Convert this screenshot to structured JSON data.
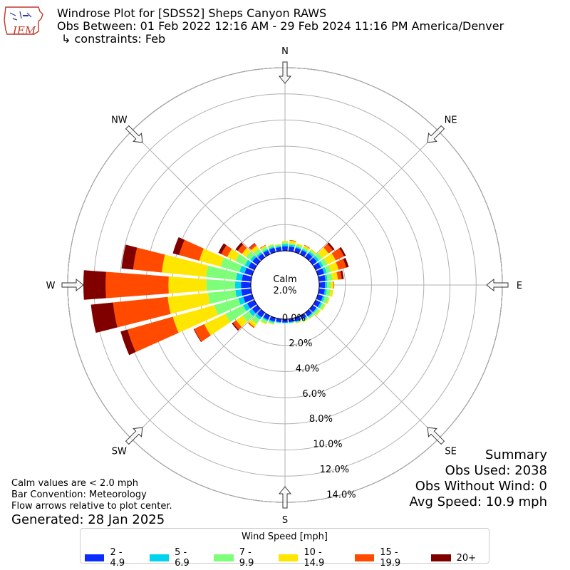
{
  "header": {
    "title": "Windrose Plot for [SDSS2] Sheps Canyon RAWS",
    "obs_between": "Obs Between: 01 Feb 2022 12:16 AM - 29 Feb 2024 11:16 PM America/Denver",
    "constraints": "↳ constraints: Feb",
    "logo_text": "IEM"
  },
  "summary": {
    "title": "Summary",
    "obs_used": "Obs Used: 2038",
    "obs_without_wind": "Obs Without Wind: 0",
    "avg_speed": "Avg Speed: 10.9 mph"
  },
  "notes": {
    "calm": "Calm values are < 2.0 mph",
    "bar_convention": "Bar Convention: Meteorology",
    "flow_arrows": "Flow arrows relative to plot center.",
    "generated": "Generated: 28 Jan 2025"
  },
  "legend": {
    "title": "Wind Speed [mph]",
    "items": [
      {
        "label": "2 - 4.9",
        "color": "#0a2cff"
      },
      {
        "label": "5 - 6.9",
        "color": "#00d3ee"
      },
      {
        "label": "7 - 9.9",
        "color": "#7dff7a"
      },
      {
        "label": "10 - 14.9",
        "color": "#ffe600"
      },
      {
        "label": "15 - 19.9",
        "color": "#ff4a00"
      },
      {
        "label": "20+",
        "color": "#800000"
      }
    ]
  },
  "chart_data": {
    "type": "windrose",
    "calm_label": "Calm",
    "calm_value": "2.0%",
    "radial_ticks": [
      "0.0%",
      "2.0%",
      "4.0%",
      "6.0%",
      "8.0%",
      "10.0%",
      "12.0%",
      "14.0%"
    ],
    "radial_max": 14,
    "directions": [
      "N",
      "NE",
      "E",
      "SE",
      "S",
      "SW",
      "W",
      "NW"
    ],
    "speed_bins": [
      "2 - 4.9",
      "5 - 6.9",
      "7 - 9.9",
      "10 - 14.9",
      "15 - 19.9",
      "20+"
    ],
    "sectors": [
      {
        "dir": 0,
        "values": [
          0.35,
          0.15,
          0.15,
          0.1,
          0.0,
          0.0
        ]
      },
      {
        "dir": 10,
        "values": [
          0.35,
          0.15,
          0.1,
          0.2,
          0.05,
          0.0
        ]
      },
      {
        "dir": 20,
        "values": [
          0.35,
          0.1,
          0.15,
          0.1,
          0.0,
          0.0
        ]
      },
      {
        "dir": 30,
        "values": [
          0.35,
          0.1,
          0.15,
          0.15,
          0.05,
          0.0
        ]
      },
      {
        "dir": 40,
        "values": [
          0.4,
          0.15,
          0.15,
          0.1,
          0.0,
          0.0
        ]
      },
      {
        "dir": 50,
        "values": [
          0.4,
          0.2,
          0.3,
          0.6,
          0.4,
          0.15
        ]
      },
      {
        "dir": 60,
        "values": [
          0.45,
          0.2,
          0.35,
          0.7,
          0.7,
          0.15
        ]
      },
      {
        "dir": 70,
        "values": [
          0.5,
          0.2,
          0.35,
          0.6,
          0.6,
          0.2
        ]
      },
      {
        "dir": 80,
        "values": [
          0.5,
          0.15,
          0.4,
          0.4,
          0.3,
          0.15
        ]
      },
      {
        "dir": 90,
        "values": [
          0.45,
          0.15,
          0.3,
          0.2,
          0.05,
          0.0
        ]
      },
      {
        "dir": 100,
        "values": [
          0.45,
          0.15,
          0.3,
          0.2,
          0.0,
          0.0
        ]
      },
      {
        "dir": 110,
        "values": [
          0.4,
          0.15,
          0.3,
          0.1,
          0.0,
          0.0
        ]
      },
      {
        "dir": 120,
        "values": [
          0.4,
          0.15,
          0.2,
          0.1,
          0.0,
          0.0
        ]
      },
      {
        "dir": 130,
        "values": [
          0.35,
          0.1,
          0.2,
          0.1,
          0.0,
          0.0
        ]
      },
      {
        "dir": 140,
        "values": [
          0.35,
          0.1,
          0.1,
          0.05,
          0.0,
          0.0
        ]
      },
      {
        "dir": 150,
        "values": [
          0.3,
          0.1,
          0.1,
          0.05,
          0.0,
          0.0
        ]
      },
      {
        "dir": 160,
        "values": [
          0.3,
          0.05,
          0.05,
          0.05,
          0.0,
          0.0
        ]
      },
      {
        "dir": 170,
        "values": [
          0.25,
          0.05,
          0.05,
          0.0,
          0.0,
          0.0
        ]
      },
      {
        "dir": 180,
        "values": [
          0.25,
          0.05,
          0.0,
          0.0,
          0.0,
          0.0
        ]
      },
      {
        "dir": 190,
        "values": [
          0.25,
          0.05,
          0.05,
          0.0,
          0.0,
          0.0
        ]
      },
      {
        "dir": 200,
        "values": [
          0.3,
          0.1,
          0.1,
          0.05,
          0.0,
          0.0
        ]
      },
      {
        "dir": 210,
        "values": [
          0.35,
          0.1,
          0.2,
          0.1,
          0.0,
          0.0
        ]
      },
      {
        "dir": 220,
        "values": [
          0.45,
          0.2,
          0.4,
          0.3,
          0.1,
          0.0
        ]
      },
      {
        "dir": 230,
        "values": [
          0.5,
          0.3,
          0.6,
          0.6,
          0.3,
          0.1
        ]
      },
      {
        "dir": 240,
        "values": [
          0.6,
          0.35,
          1.5,
          1.8,
          0.85,
          0.05
        ]
      },
      {
        "dir": 250,
        "values": [
          0.7,
          0.4,
          1.9,
          3.3,
          3.6,
          0.55
        ]
      },
      {
        "dir": 260,
        "values": [
          0.75,
          0.45,
          2.1,
          3.1,
          4.2,
          1.7
        ]
      },
      {
        "dir": 270,
        "values": [
          0.75,
          0.45,
          2.2,
          2.9,
          4.8,
          1.7
        ]
      },
      {
        "dir": 280,
        "values": [
          0.7,
          0.45,
          2.3,
          3.4,
          2.2,
          0.9
        ]
      },
      {
        "dir": 290,
        "values": [
          0.6,
          0.4,
          1.5,
          1.7,
          1.6,
          0.5
        ]
      },
      {
        "dir": 300,
        "values": [
          0.5,
          0.3,
          0.8,
          0.7,
          0.5,
          0.25
        ]
      },
      {
        "dir": 310,
        "values": [
          0.45,
          0.2,
          0.4,
          0.4,
          0.4,
          0.2
        ]
      },
      {
        "dir": 320,
        "values": [
          0.35,
          0.15,
          0.3,
          0.3,
          0.2,
          0.05
        ]
      },
      {
        "dir": 330,
        "values": [
          0.35,
          0.1,
          0.2,
          0.1,
          0.05,
          0.0
        ]
      },
      {
        "dir": 340,
        "values": [
          0.35,
          0.1,
          0.15,
          0.05,
          0.0,
          0.0
        ]
      },
      {
        "dir": 350,
        "values": [
          0.3,
          0.1,
          0.1,
          0.05,
          0.0,
          0.0
        ]
      }
    ]
  }
}
